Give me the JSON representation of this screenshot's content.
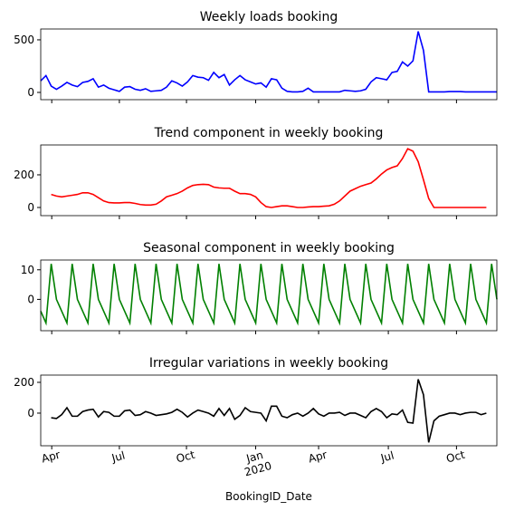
{
  "chart_data": [
    {
      "type": "line",
      "title": "Weekly loads booking",
      "x": [
        0,
        1,
        2,
        3,
        4,
        5,
        6,
        7,
        8,
        9,
        10,
        11,
        12,
        13,
        14,
        15,
        16,
        17,
        18,
        19,
        20,
        21,
        22,
        23,
        24,
        25,
        26,
        27,
        28,
        29,
        30,
        31,
        32,
        33,
        34,
        35,
        36,
        37,
        38,
        39,
        40,
        41,
        42,
        43,
        44,
        45,
        46,
        47,
        48,
        49,
        50,
        51,
        52,
        53,
        54,
        55,
        56,
        57,
        58,
        59,
        60,
        61,
        62,
        63,
        64,
        65,
        66,
        67,
        68,
        69,
        70,
        71,
        72,
        73,
        74,
        75,
        76,
        77,
        78,
        79,
        80,
        81,
        82,
        83,
        84,
        85,
        86,
        87
      ],
      "series": [
        {
          "name": "Weekly loads booking",
          "color": "#0000ff",
          "values": [
            110,
            160,
            60,
            30,
            60,
            95,
            70,
            55,
            95,
            105,
            130,
            50,
            70,
            40,
            25,
            10,
            50,
            55,
            30,
            20,
            35,
            10,
            15,
            20,
            50,
            110,
            90,
            60,
            100,
            160,
            145,
            140,
            115,
            190,
            140,
            170,
            70,
            120,
            160,
            120,
            100,
            80,
            90,
            50,
            130,
            120,
            40,
            10,
            5,
            5,
            10,
            40,
            5,
            5,
            5,
            5,
            5,
            5,
            20,
            15,
            10,
            15,
            30,
            100,
            140,
            130,
            120,
            190,
            200,
            290,
            250,
            300,
            580,
            400,
            5,
            5,
            5,
            5,
            8,
            8,
            8,
            5,
            5,
            5,
            5,
            5,
            5,
            5
          ]
        }
      ],
      "xlim": [
        0,
        87
      ],
      "ylim": [
        -69,
        603
      ],
      "yticks": [
        0,
        500
      ]
    },
    {
      "type": "line",
      "title": "Trend component in weekly booking",
      "x": [
        0,
        1,
        2,
        3,
        4,
        5,
        6,
        7,
        8,
        9,
        10,
        11,
        12,
        13,
        14,
        15,
        16,
        17,
        18,
        19,
        20,
        21,
        22,
        23,
        24,
        25,
        26,
        27,
        28,
        29,
        30,
        31,
        32,
        33,
        34,
        35,
        36,
        37,
        38,
        39,
        40,
        41,
        42,
        43,
        44,
        45,
        46,
        47,
        48,
        49,
        50,
        51,
        52,
        53,
        54,
        55,
        56,
        57,
        58,
        59,
        60,
        61,
        62,
        63,
        64,
        65,
        66,
        67,
        68,
        69,
        70,
        71,
        72,
        73,
        74,
        75,
        76,
        77,
        78,
        79,
        80,
        81,
        82,
        83,
        84,
        85,
        86,
        87
      ],
      "series": [
        {
          "name": "Trend component in weekly booking",
          "color": "#ff0000",
          "values": [
            null,
            null,
            80,
            70,
            65,
            70,
            75,
            80,
            90,
            90,
            80,
            60,
            40,
            30,
            28,
            28,
            30,
            30,
            25,
            18,
            15,
            15,
            20,
            40,
            65,
            75,
            85,
            100,
            120,
            135,
            140,
            142,
            140,
            125,
            120,
            118,
            118,
            100,
            85,
            85,
            80,
            65,
            30,
            5,
            0,
            5,
            10,
            10,
            5,
            0,
            0,
            3,
            5,
            5,
            8,
            10,
            20,
            40,
            70,
            100,
            115,
            130,
            140,
            150,
            175,
            205,
            230,
            245,
            255,
            300,
            360,
            345,
            280,
            170,
            55,
            0,
            0,
            0,
            0,
            0,
            0,
            0,
            0,
            0,
            0,
            0,
            null,
            null
          ]
        }
      ],
      "xlim": [
        0,
        87
      ],
      "ylim": [
        -50,
        383
      ],
      "yticks": [
        0,
        200
      ]
    },
    {
      "type": "line",
      "title": "Seasonal component in weekly booking",
      "x": [
        0,
        1,
        2,
        3,
        4,
        5,
        6,
        7,
        8,
        9,
        10,
        11,
        12,
        13,
        14,
        15,
        16,
        17,
        18,
        19,
        20,
        21,
        22,
        23,
        24,
        25,
        26,
        27,
        28,
        29,
        30,
        31,
        32,
        33,
        34,
        35,
        36,
        37,
        38,
        39,
        40,
        41,
        42,
        43,
        44,
        45,
        46,
        47,
        48,
        49,
        50,
        51,
        52,
        53,
        54,
        55,
        56,
        57,
        58,
        59,
        60,
        61,
        62,
        63,
        64,
        65,
        66,
        67,
        68,
        69,
        70,
        71,
        72,
        73,
        74,
        75,
        76,
        77,
        78,
        79,
        80,
        81,
        82,
        83,
        84,
        85,
        86,
        87
      ],
      "series": [
        {
          "name": "Seasonal component in weekly booking",
          "color": "#008000",
          "values": [
            -4,
            -8,
            12,
            0,
            -4,
            -8,
            12,
            0,
            -4,
            -8,
            12,
            0,
            -4,
            -8,
            12,
            0,
            -4,
            -8,
            12,
            0,
            -4,
            -8,
            12,
            0,
            -4,
            -8,
            12,
            0,
            -4,
            -8,
            12,
            0,
            -4,
            -8,
            12,
            0,
            -4,
            -8,
            12,
            0,
            -4,
            -8,
            12,
            0,
            -4,
            -8,
            12,
            0,
            -4,
            -8,
            12,
            0,
            -4,
            -8,
            12,
            0,
            -4,
            -8,
            12,
            0,
            -4,
            -8,
            12,
            0,
            -4,
            -8,
            12,
            0,
            -4,
            -8,
            12,
            0,
            -4,
            -8,
            12,
            0,
            -4,
            -8,
            12,
            0,
            -4,
            -8,
            12,
            0,
            -4,
            -8,
            12,
            0
          ]
        }
      ],
      "xlim": [
        0,
        87
      ],
      "ylim": [
        -10.6,
        13.3
      ],
      "yticks": [
        0,
        10
      ]
    },
    {
      "type": "line",
      "title": "Irregular variations in weekly booking",
      "xlabel": "BookingID_Date",
      "x": [
        0,
        1,
        2,
        3,
        4,
        5,
        6,
        7,
        8,
        9,
        10,
        11,
        12,
        13,
        14,
        15,
        16,
        17,
        18,
        19,
        20,
        21,
        22,
        23,
        24,
        25,
        26,
        27,
        28,
        29,
        30,
        31,
        32,
        33,
        34,
        35,
        36,
        37,
        38,
        39,
        40,
        41,
        42,
        43,
        44,
        45,
        46,
        47,
        48,
        49,
        50,
        51,
        52,
        53,
        54,
        55,
        56,
        57,
        58,
        59,
        60,
        61,
        62,
        63,
        64,
        65,
        66,
        67,
        68,
        69,
        70,
        71,
        72,
        73,
        74,
        75,
        76,
        77,
        78,
        79,
        80,
        81,
        82,
        83,
        84,
        85,
        86,
        87
      ],
      "series": [
        {
          "name": "Irregular variations in weekly booking",
          "color": "#000000",
          "values": [
            null,
            null,
            -30,
            -35,
            -10,
            35,
            -20,
            -20,
            10,
            20,
            25,
            -25,
            10,
            5,
            -20,
            -20,
            15,
            20,
            -15,
            -10,
            10,
            0,
            -15,
            -10,
            -5,
            5,
            25,
            5,
            -25,
            0,
            20,
            10,
            0,
            -20,
            30,
            -15,
            30,
            -40,
            -15,
            35,
            10,
            5,
            0,
            -50,
            45,
            45,
            -20,
            -30,
            -10,
            0,
            -20,
            0,
            30,
            -5,
            -20,
            0,
            0,
            5,
            -15,
            0,
            0,
            -15,
            -30,
            10,
            30,
            10,
            -30,
            -5,
            -10,
            20,
            -60,
            -65,
            220,
            120,
            -190,
            -50,
            -20,
            -10,
            0,
            0,
            -10,
            0,
            5,
            5,
            -10,
            0,
            null,
            null
          ]
        }
      ],
      "xlim": [
        0,
        87
      ],
      "ylim": [
        -212,
        247
      ],
      "yticks": [
        0,
        200
      ],
      "xticks": [
        {
          "value": 2.1,
          "label": "Apr"
        },
        {
          "value": 15,
          "label": "Jul"
        },
        {
          "value": 27.8,
          "label": "Oct"
        },
        {
          "value": 41,
          "label": "Jan\n2020"
        },
        {
          "value": 53,
          "label": "Apr"
        },
        {
          "value": 66.3,
          "label": "Jul"
        },
        {
          "value": 79.3,
          "label": "Oct"
        }
      ]
    }
  ]
}
